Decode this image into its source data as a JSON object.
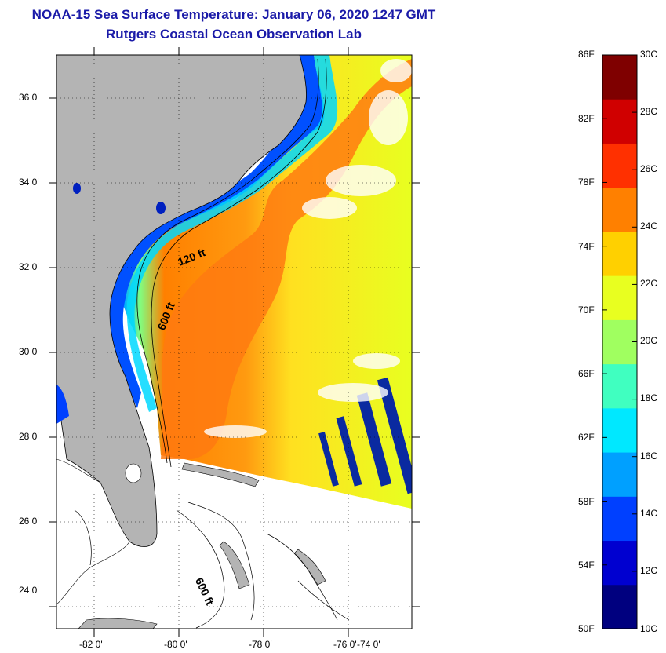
{
  "header": {
    "title_line1": "NOAA-15 Sea Surface Temperature:  January 06, 2020 1247 GMT",
    "title_line2": "Rutgers Coastal Ocean Observation Lab"
  },
  "map": {
    "lat_labels": [
      "36 0'",
      "34 0'",
      "32 0'",
      "30 0'",
      "28 0'",
      "26 0'",
      "24 0'"
    ],
    "lon_labels": [
      "-82 0'",
      "-80 0'",
      "-78 0'",
      "-76 0'",
      "-74 0'"
    ],
    "isobath_labels": {
      "shelf_120": "120 ft",
      "shelf_600": "600 ft",
      "bahamas_600": "600 ft"
    },
    "colors": {
      "land": "#b4b4b4",
      "water_nodata": "#ffffff"
    }
  },
  "colorbar": {
    "fahrenheit_labels": [
      "86F",
      "82F",
      "78F",
      "74F",
      "70F",
      "66F",
      "62F",
      "58F",
      "54F",
      "50F"
    ],
    "celsius_labels": [
      "30C",
      "28C",
      "26C",
      "24C",
      "22C",
      "20C",
      "18C",
      "16C",
      "14C",
      "12C",
      "10C"
    ],
    "colors_bottom_to_top": [
      "#00007f",
      "#0000d0",
      "#0040ff",
      "#00a0ff",
      "#00e8ff",
      "#40ffc0",
      "#a0ff60",
      "#e8ff20",
      "#ffd000",
      "#ff8000",
      "#ff3000",
      "#d00000",
      "#7f0000"
    ]
  }
}
